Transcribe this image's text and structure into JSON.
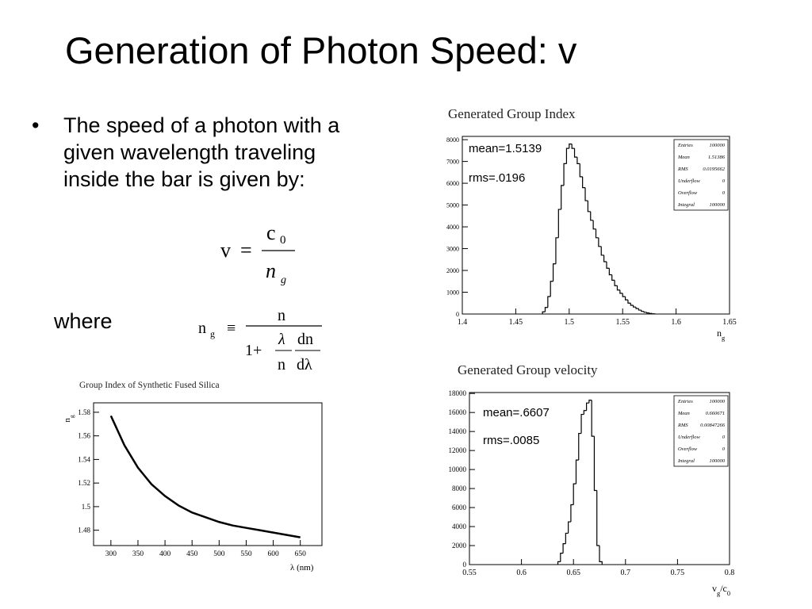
{
  "slide": {
    "title": "Generation of Photon Speed: v",
    "bullet": "The speed of a photon with a given wavelength traveling inside the bar is given by:",
    "where": "where",
    "eq1": {
      "lhs": "v",
      "op": "=",
      "num": "c",
      "num_sub": "0",
      "den": "n",
      "den_sub": "g"
    },
    "eq2": {
      "lhs": "n",
      "lhs_sub": "g",
      "op": "≡",
      "num": "n",
      "den_a": "1+",
      "frac_num": "λ",
      "frac_den": "n",
      "d_num": "dn",
      "d_den": "dλ"
    }
  },
  "chart_data": [
    {
      "type": "histogram",
      "title": "Generated Group Index",
      "color": "#000000",
      "annotations": [
        "mean=1.5139",
        "rms=.0196"
      ],
      "stats": [
        {
          "label": "Entries",
          "value": 100000
        },
        {
          "label": "Mean",
          "value": 1.51386
        },
        {
          "label": "RMS",
          "value": 0.0195662
        },
        {
          "label": "Underflow",
          "value": 0
        },
        {
          "label": "Overflow",
          "value": 0
        },
        {
          "label": "Integral",
          "value": 100000
        }
      ],
      "x_label": [
        {
          "text": "n"
        },
        {
          "text": "g",
          "sub": true
        }
      ],
      "bins": [
        1.475,
        1.4775,
        1.48,
        1.4825,
        1.485,
        1.4875,
        1.49,
        1.4925,
        1.495,
        1.4975,
        1.5,
        1.5025,
        1.505,
        1.5075,
        1.51,
        1.5125,
        1.515,
        1.5175,
        1.52,
        1.5225,
        1.525,
        1.5275,
        1.53,
        1.5325,
        1.535,
        1.5375,
        1.54,
        1.5425,
        1.545,
        1.5475,
        1.55,
        1.5525,
        1.555,
        1.5575,
        1.56,
        1.5625,
        1.565,
        1.5675,
        1.57,
        1.5725,
        1.575,
        1.5775,
        1.58
      ],
      "counts": [
        100,
        300,
        800,
        1500,
        2300,
        3500,
        4800,
        5900,
        6900,
        7600,
        7800,
        7600,
        7200,
        6900,
        6300,
        5800,
        5200,
        4700,
        4300,
        3900,
        3500,
        3100,
        2700,
        2400,
        2100,
        1800,
        1550,
        1300,
        1100,
        950,
        800,
        650,
        500,
        400,
        320,
        250,
        180,
        120,
        80,
        50,
        30,
        10
      ],
      "xlim": [
        1.4,
        1.65
      ],
      "xticks": [
        1.4,
        1.45,
        1.5,
        1.55,
        1.6,
        1.65
      ],
      "ylim": [
        0,
        8150
      ],
      "yticks": [
        0,
        1000,
        2000,
        3000,
        4000,
        5000,
        6000,
        7000,
        8000
      ]
    },
    {
      "type": "histogram",
      "title": "Generated Group velocity",
      "color": "#000000",
      "annotations": [
        "mean=.6607",
        "rms=.0085"
      ],
      "stats": [
        {
          "label": "Entries",
          "value": 100000
        },
        {
          "label": "Mean",
          "value": 0.660671
        },
        {
          "label": "RMS",
          "value": 0.00847266
        },
        {
          "label": "Underflow",
          "value": 0
        },
        {
          "label": "Overflow",
          "value": 0
        },
        {
          "label": "Integral",
          "value": 100000
        }
      ],
      "x_label": [
        {
          "text": "v"
        },
        {
          "text": "g",
          "sub": true
        },
        {
          "text": "/c"
        },
        {
          "text": "0",
          "sub": true
        }
      ],
      "bins": [
        0.635,
        0.6375,
        0.64,
        0.6425,
        0.645,
        0.6475,
        0.65,
        0.6525,
        0.655,
        0.6575,
        0.66,
        0.6625,
        0.665,
        0.6675,
        0.67,
        0.6725,
        0.675,
        0.6775
      ],
      "counts": [
        300,
        1200,
        2200,
        3300,
        4500,
        6300,
        8500,
        11000,
        13800,
        15800,
        16200,
        17000,
        17300,
        13500,
        7800,
        2000,
        300
      ],
      "xlim": [
        0.55,
        0.8
      ],
      "xticks": [
        0.55,
        0.6,
        0.65,
        0.7,
        0.75,
        0.8
      ],
      "ylim": [
        0,
        18100
      ],
      "yticks": [
        0,
        2000,
        4000,
        6000,
        8000,
        10000,
        12000,
        14000,
        16000,
        18000
      ]
    },
    {
      "type": "line",
      "title": "Group Index of Synthetic Fused Silica",
      "color": "#000000",
      "x_label": [
        {
          "text": "λ (nm)"
        }
      ],
      "y_label": [
        {
          "text": "n"
        },
        {
          "text": "g",
          "sub": true
        }
      ],
      "x": [
        300,
        325,
        350,
        375,
        400,
        425,
        450,
        475,
        500,
        525,
        550,
        575,
        600,
        625,
        650
      ],
      "values": [
        1.577,
        1.552,
        1.533,
        1.519,
        1.509,
        1.501,
        1.495,
        1.491,
        1.487,
        1.484,
        1.482,
        1.48,
        1.478,
        1.476,
        1.474
      ],
      "xlim": [
        268,
        690
      ],
      "xticks": [
        300,
        350,
        400,
        450,
        500,
        550,
        600,
        650
      ],
      "ylim": [
        1.467,
        1.588
      ],
      "yticks": [
        1.48,
        1.5,
        1.52,
        1.54,
        1.56,
        1.58
      ]
    }
  ]
}
